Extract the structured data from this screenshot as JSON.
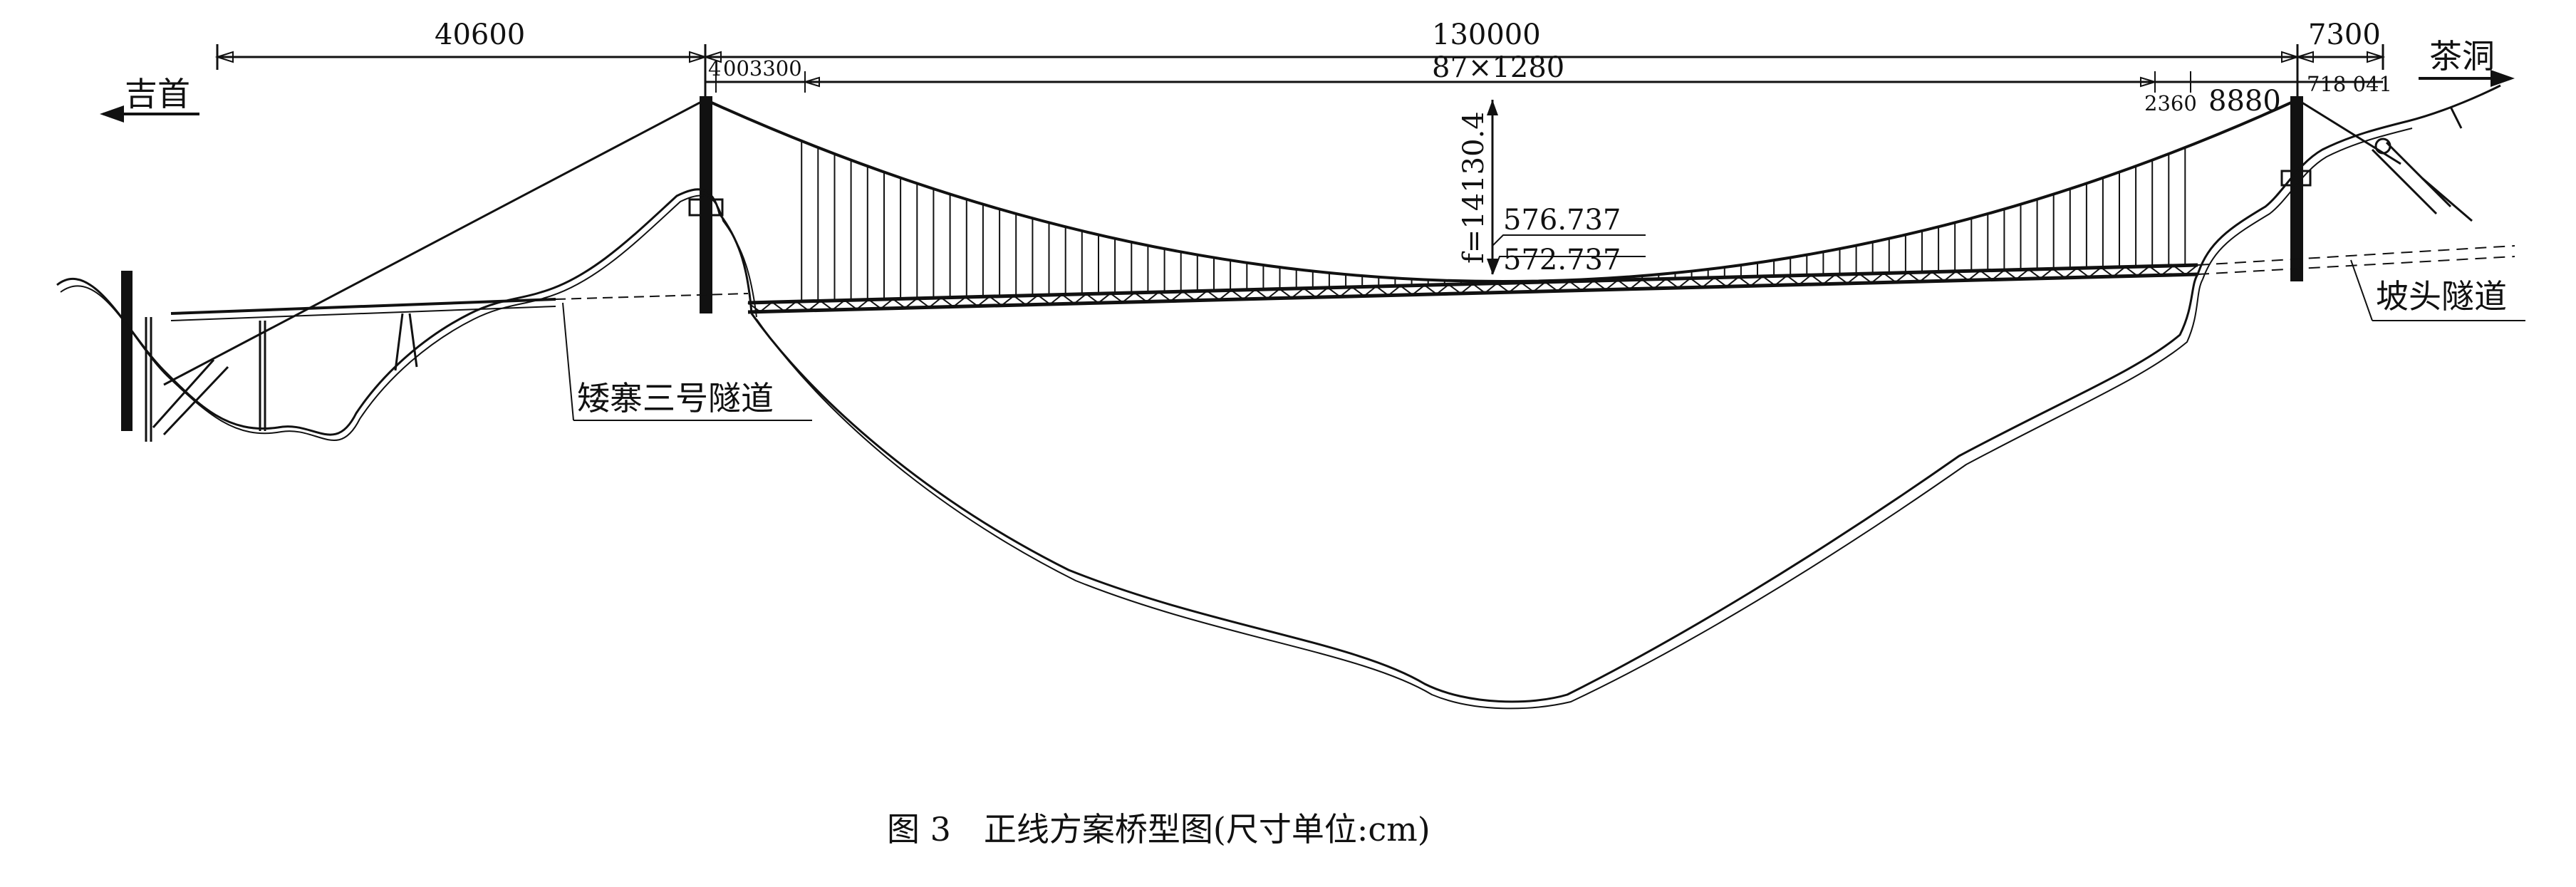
{
  "dimensions": {
    "left_span": "40600",
    "main_span": "130000",
    "right_span": "7300",
    "left_tower_sub_a": "4",
    "left_tower_sub_b": "003300",
    "hanger_spacing": "87×1280",
    "right_sub_a": "2360",
    "right_sub_b": "8880",
    "right_sub_c": "718 041",
    "sag": "f=14130.4"
  },
  "elevations": {
    "upper": "576.737",
    "lower": "572.737"
  },
  "places": {
    "left_end": "吉首",
    "right_end": "茶洞",
    "left_tunnel": "矮寨三号隧道",
    "right_tunnel": "坡头隧道"
  },
  "caption": "图 3　正线方案桥型图(尺寸单位:cm)",
  "colors": {
    "ink": "#111111",
    "paper": "#ffffff"
  }
}
